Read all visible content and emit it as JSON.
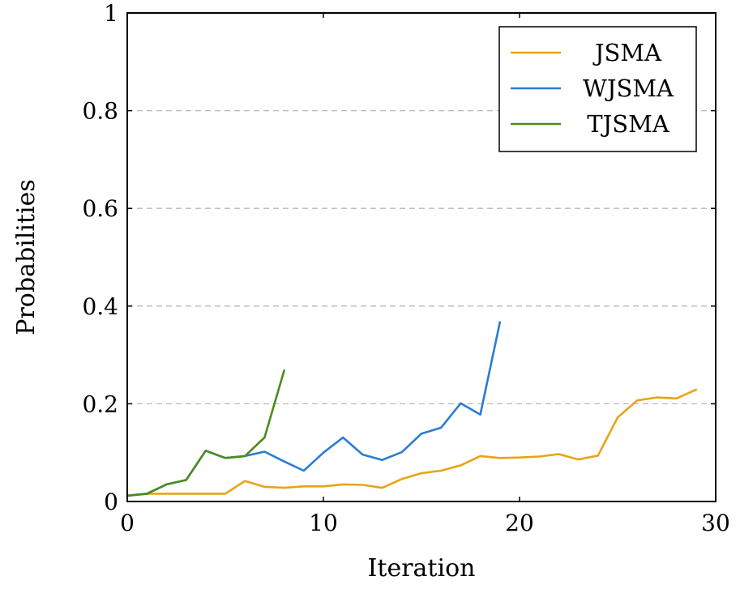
{
  "chart_data": {
    "type": "line",
    "title": "",
    "xlabel": "Iteration",
    "ylabel": "Probabilities",
    "xlim": [
      0,
      30
    ],
    "ylim": [
      0,
      1
    ],
    "xticks": [
      0,
      10,
      20,
      30
    ],
    "yticks": [
      0,
      0.2,
      0.4,
      0.6,
      0.8,
      1
    ],
    "xtick_labels": [
      "0",
      "10",
      "20",
      "30"
    ],
    "ytick_labels": [
      "0",
      "0.2",
      "0.4",
      "0.6",
      "0.8",
      "1"
    ],
    "grid": "horizontal dashed",
    "legend_position": "top-right",
    "series": [
      {
        "name": "JSMA",
        "color": "#E8A317",
        "x": [
          0,
          1,
          2,
          3,
          4,
          5,
          6,
          7,
          8,
          9,
          10,
          11,
          12,
          13,
          14,
          15,
          16,
          17,
          18,
          19,
          20,
          21,
          22,
          23,
          24,
          25,
          26,
          27,
          28,
          29
        ],
        "y": [
          0.012,
          0.016,
          0.016,
          0.016,
          0.016,
          0.016,
          0.042,
          0.03,
          0.028,
          0.031,
          0.031,
          0.035,
          0.034,
          0.028,
          0.046,
          0.058,
          0.063,
          0.074,
          0.093,
          0.089,
          0.09,
          0.092,
          0.097,
          0.086,
          0.094,
          0.172,
          0.207,
          0.213,
          0.211,
          0.229
        ]
      },
      {
        "name": "WJSMA",
        "color": "#2B7CD3",
        "x": [
          0,
          1,
          2,
          3,
          4,
          5,
          6,
          7,
          8,
          9,
          10,
          11,
          12,
          13,
          14,
          15,
          16,
          17,
          18,
          19
        ],
        "y": [
          0.012,
          0.016,
          0.035,
          0.044,
          0.104,
          0.089,
          0.093,
          0.102,
          0.082,
          0.063,
          0.1,
          0.131,
          0.096,
          0.085,
          0.101,
          0.139,
          0.151,
          0.201,
          0.178,
          0.367
        ]
      },
      {
        "name": "TJSMA",
        "color": "#4C8C1E",
        "x": [
          0,
          1,
          2,
          3,
          4,
          5,
          6,
          7,
          8
        ],
        "y": [
          0.012,
          0.016,
          0.035,
          0.044,
          0.104,
          0.089,
          0.093,
          0.131,
          0.268
        ]
      }
    ]
  }
}
